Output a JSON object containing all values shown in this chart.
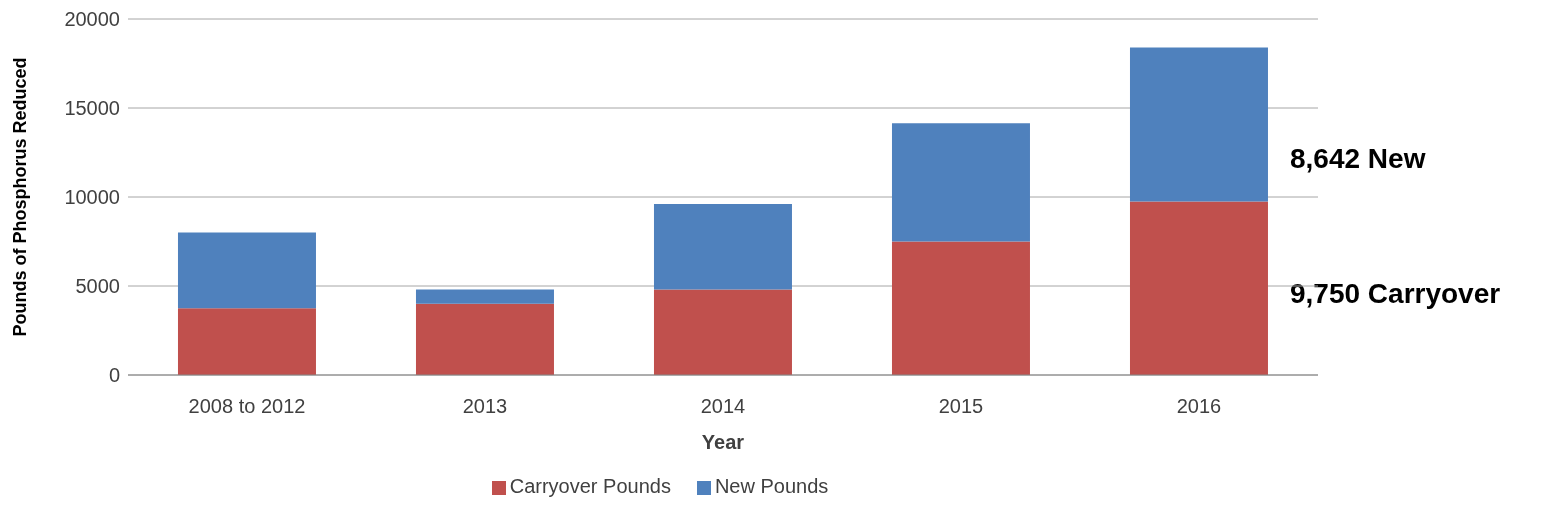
{
  "chart_data": {
    "type": "bar",
    "stacked": true,
    "xlabel": "Year",
    "ylabel": "Pounds of Phosphorus Reduced",
    "categories": [
      "2008 to 2012",
      "2013",
      "2014",
      "2015",
      "2016"
    ],
    "series": [
      {
        "name": "Carryover Pounds",
        "color": "#c0504d",
        "values": [
          3750,
          4000,
          4800,
          7500,
          9750
        ]
      },
      {
        "name": "New Pounds",
        "color": "#4f81bd",
        "values": [
          4250,
          800,
          4800,
          6650,
          8642
        ]
      }
    ],
    "ylim": [
      0,
      20000
    ],
    "yticks": [
      0,
      5000,
      10000,
      15000,
      20000
    ],
    "grid": "y",
    "legend": "bottom",
    "annotations": [
      "8,642 New",
      "9,750 Carryover"
    ]
  }
}
